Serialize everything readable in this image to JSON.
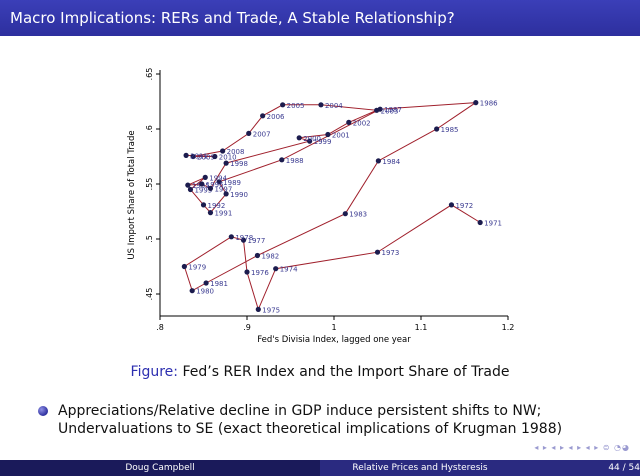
{
  "slide": {
    "title": "Macro Implications: RERs and Trade, A Stable Relationship?",
    "caption_label": "Figure:",
    "caption_text": " Fed’s RER Index and the Import Share of Trade",
    "bullet_line1": "Appreciations/Relative decline in GDP induce persistent shifts to NW;",
    "bullet_line2": "Undervaluations to SE (exact theoretical implications of Krugman 1988)",
    "nav_icons": "◂ ▸ ◂ ▸ ◂ ▸ ◂ ▸ ⊜ ◔◕",
    "footer_author": "Doug Campbell",
    "footer_title": "Relative Prices and Hysteresis",
    "footer_page": "44 / 54"
  },
  "colors": {
    "title_bg": "#2d2f9e",
    "line": "#a0202c",
    "marker": "#1c1c4e",
    "label": "#3a3a90"
  },
  "chart_data": {
    "type": "line",
    "xlabel": "Fed's Divisia Index, lagged one year",
    "ylabel": "US Import Share of Total Trade",
    "xlim": [
      0.8,
      1.2
    ],
    "ylim": [
      0.43,
      0.65
    ],
    "xticks": [
      ".8",
      ".9",
      "1",
      "1.1",
      "1.2"
    ],
    "yticks": [
      ".45",
      ".5",
      ".55",
      ".6",
      ".65"
    ],
    "grid": false,
    "points": [
      {
        "year": "1971",
        "x": 1.168,
        "y": 0.515
      },
      {
        "year": "1972",
        "x": 1.135,
        "y": 0.531
      },
      {
        "year": "1973",
        "x": 1.05,
        "y": 0.488
      },
      {
        "year": "1974",
        "x": 0.933,
        "y": 0.473
      },
      {
        "year": "1975",
        "x": 0.913,
        "y": 0.436
      },
      {
        "year": "1976",
        "x": 0.9,
        "y": 0.47
      },
      {
        "year": "1977",
        "x": 0.896,
        "y": 0.499
      },
      {
        "year": "1978",
        "x": 0.882,
        "y": 0.502
      },
      {
        "year": "1979",
        "x": 0.828,
        "y": 0.475
      },
      {
        "year": "1980",
        "x": 0.837,
        "y": 0.453
      },
      {
        "year": "1981",
        "x": 0.853,
        "y": 0.46
      },
      {
        "year": "1982",
        "x": 0.912,
        "y": 0.485
      },
      {
        "year": "1983",
        "x": 1.013,
        "y": 0.523
      },
      {
        "year": "1984",
        "x": 1.051,
        "y": 0.571
      },
      {
        "year": "1985",
        "x": 1.118,
        "y": 0.6
      },
      {
        "year": "1986",
        "x": 1.163,
        "y": 0.624
      },
      {
        "year": "1987",
        "x": 1.053,
        "y": 0.618
      },
      {
        "year": "1988",
        "x": 0.94,
        "y": 0.572
      },
      {
        "year": "1989",
        "x": 0.868,
        "y": 0.552
      },
      {
        "year": "1990",
        "x": 0.876,
        "y": 0.541
      },
      {
        "year": "1991",
        "x": 0.858,
        "y": 0.524
      },
      {
        "year": "1992",
        "x": 0.85,
        "y": 0.531
      },
      {
        "year": "1993",
        "x": 0.835,
        "y": 0.545
      },
      {
        "year": "1994",
        "x": 0.852,
        "y": 0.556
      },
      {
        "year": "1995",
        "x": 0.832,
        "y": 0.549
      },
      {
        "year": "1996",
        "x": 0.848,
        "y": 0.55
      },
      {
        "year": "1997",
        "x": 0.858,
        "y": 0.546
      },
      {
        "year": "1998",
        "x": 0.876,
        "y": 0.569
      },
      {
        "year": "1999",
        "x": 0.972,
        "y": 0.589
      },
      {
        "year": "2000",
        "x": 0.96,
        "y": 0.592
      },
      {
        "year": "2001",
        "x": 0.993,
        "y": 0.595
      },
      {
        "year": "2002",
        "x": 1.017,
        "y": 0.606
      },
      {
        "year": "2003",
        "x": 1.049,
        "y": 0.617
      },
      {
        "year": "2004",
        "x": 0.985,
        "y": 0.622
      },
      {
        "year": "2005",
        "x": 0.941,
        "y": 0.622
      },
      {
        "year": "2006",
        "x": 0.918,
        "y": 0.612
      },
      {
        "year": "2007",
        "x": 0.902,
        "y": 0.596
      },
      {
        "year": "2008",
        "x": 0.872,
        "y": 0.58
      },
      {
        "year": "2009",
        "x": 0.838,
        "y": 0.575
      },
      {
        "year": "2010",
        "x": 0.863,
        "y": 0.575
      },
      {
        "year": "2011",
        "x": 0.83,
        "y": 0.576
      }
    ]
  }
}
